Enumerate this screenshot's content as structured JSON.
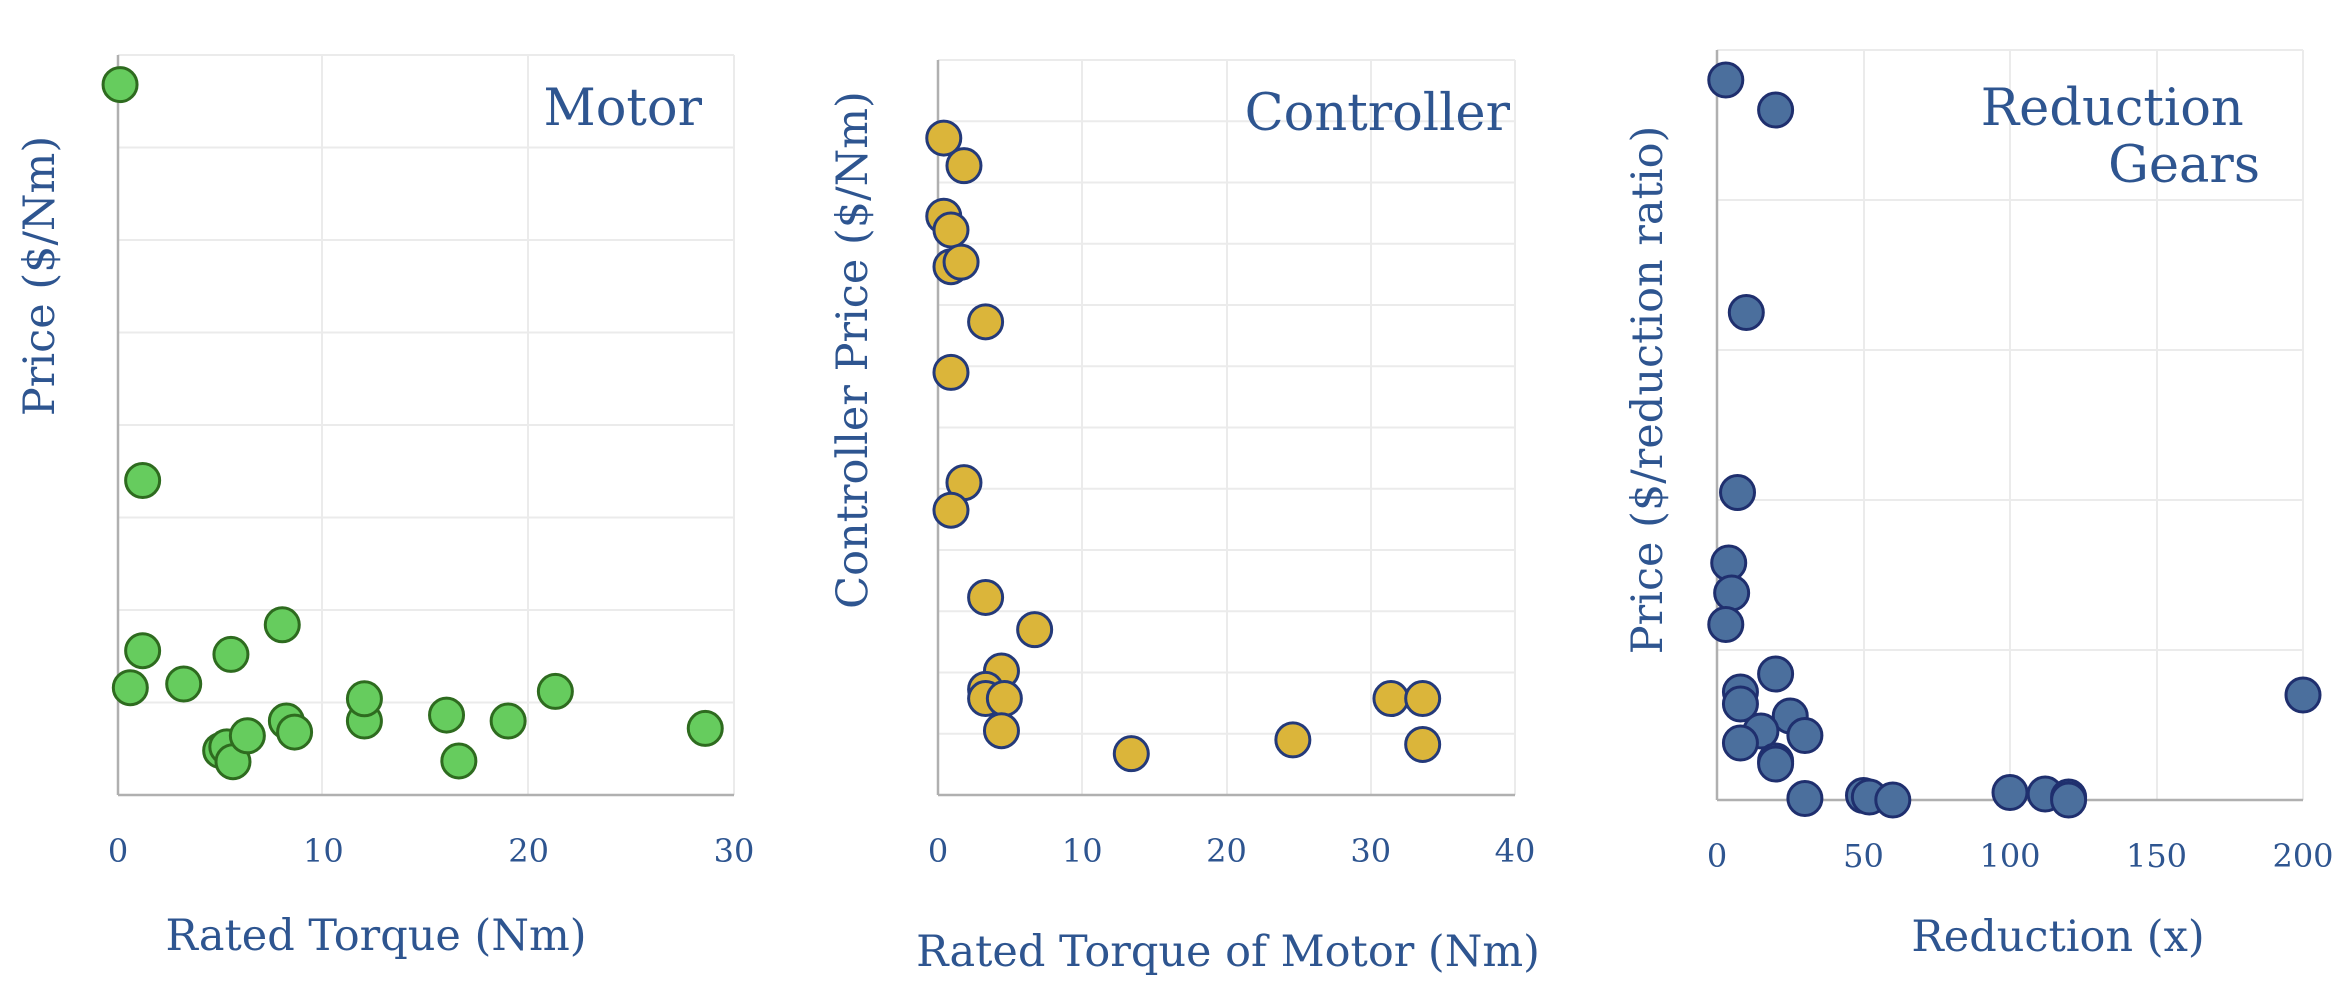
{
  "chart_data": [
    {
      "type": "scatter",
      "title": "Motor",
      "xlabel": "Rated Torque (Nm)",
      "ylabel": "Price ($/Nm)",
      "xlim": [
        0,
        30
      ],
      "xticks": [
        "0",
        "10",
        "20",
        "30"
      ],
      "y_tick_labels_shown": false,
      "grid": true,
      "color": "#66cc5e",
      "edge_color": "#2e6b1f",
      "points": [
        {
          "x": 0.1,
          "y": 96.0
        },
        {
          "x": 1.2,
          "y": 42.5
        },
        {
          "x": 1.2,
          "y": 19.5
        },
        {
          "x": 0.6,
          "y": 14.5
        },
        {
          "x": 3.2,
          "y": 15.0
        },
        {
          "x": 5.5,
          "y": 19.0
        },
        {
          "x": 8.0,
          "y": 23.0
        },
        {
          "x": 5.0,
          "y": 6.0
        },
        {
          "x": 5.3,
          "y": 6.5
        },
        {
          "x": 5.6,
          "y": 4.5
        },
        {
          "x": 6.3,
          "y": 8.0
        },
        {
          "x": 8.2,
          "y": 10.0
        },
        {
          "x": 8.6,
          "y": 8.5
        },
        {
          "x": 12.0,
          "y": 10.0
        },
        {
          "x": 12.0,
          "y": 13.0
        },
        {
          "x": 16.0,
          "y": 10.8
        },
        {
          "x": 16.6,
          "y": 4.6
        },
        {
          "x": 19.0,
          "y": 10.0
        },
        {
          "x": 21.3,
          "y": 14.0
        },
        {
          "x": 28.6,
          "y": 9.0
        }
      ]
    },
    {
      "type": "scatter",
      "title": "Controller",
      "xlabel": "Rated Torque of Motor (Nm)",
      "ylabel": "Controller Price ($/Nm)",
      "xlim": [
        0,
        40
      ],
      "xticks": [
        "0",
        "10",
        "20",
        "30",
        "40"
      ],
      "y_tick_labels_shown": false,
      "grid": true,
      "color": "#dbb53a",
      "edge_color": "#243a7a",
      "points": [
        {
          "x": 0.4,
          "y": 71.5
        },
        {
          "x": 1.8,
          "y": 68.5
        },
        {
          "x": 0.4,
          "y": 63.0
        },
        {
          "x": 0.9,
          "y": 61.5
        },
        {
          "x": 0.9,
          "y": 57.5
        },
        {
          "x": 1.6,
          "y": 58.0
        },
        {
          "x": 3.3,
          "y": 51.5
        },
        {
          "x": 0.9,
          "y": 46.0
        },
        {
          "x": 1.8,
          "y": 34.0
        },
        {
          "x": 0.9,
          "y": 31.0
        },
        {
          "x": 3.3,
          "y": 21.5
        },
        {
          "x": 6.7,
          "y": 18.0
        },
        {
          "x": 4.4,
          "y": 13.5
        },
        {
          "x": 3.3,
          "y": 11.5
        },
        {
          "x": 3.3,
          "y": 10.5
        },
        {
          "x": 4.6,
          "y": 10.5
        },
        {
          "x": 4.4,
          "y": 7.0
        },
        {
          "x": 13.4,
          "y": 4.5
        },
        {
          "x": 24.6,
          "y": 6.0
        },
        {
          "x": 31.4,
          "y": 10.5
        },
        {
          "x": 33.6,
          "y": 10.5
        },
        {
          "x": 33.6,
          "y": 5.5
        }
      ]
    },
    {
      "type": "scatter",
      "title": "Reduction Gears",
      "xlabel": "Reduction (x)",
      "ylabel": "Price ($/reduction ratio)",
      "xlim": [
        0,
        200
      ],
      "xticks": [
        "0",
        "50",
        "100",
        "150",
        "200"
      ],
      "y_tick_labels_shown": false,
      "grid": true,
      "color": "#4b6f9d",
      "edge_color": "#1f2f6e",
      "points": [
        {
          "x": 3,
          "y": 48.0
        },
        {
          "x": 20,
          "y": 46.0
        },
        {
          "x": 10,
          "y": 32.5
        },
        {
          "x": 7,
          "y": 20.5
        },
        {
          "x": 4,
          "y": 15.8
        },
        {
          "x": 5,
          "y": 13.8
        },
        {
          "x": 3,
          "y": 11.7
        },
        {
          "x": 20,
          "y": 8.4
        },
        {
          "x": 8,
          "y": 7.2
        },
        {
          "x": 8,
          "y": 6.4
        },
        {
          "x": 25,
          "y": 5.6
        },
        {
          "x": 15,
          "y": 4.6
        },
        {
          "x": 30,
          "y": 4.3
        },
        {
          "x": 8,
          "y": 3.8
        },
        {
          "x": 20,
          "y": 2.6
        },
        {
          "x": 20,
          "y": 2.4
        },
        {
          "x": 30,
          "y": 0.1
        },
        {
          "x": 50,
          "y": 0.3
        },
        {
          "x": 52,
          "y": 0.2
        },
        {
          "x": 60,
          "y": 0.0
        },
        {
          "x": 100,
          "y": 0.5
        },
        {
          "x": 112,
          "y": 0.4
        },
        {
          "x": 120,
          "y": 0.2
        },
        {
          "x": 120,
          "y": 0.0
        },
        {
          "x": 200,
          "y": 7.0
        }
      ]
    }
  ]
}
